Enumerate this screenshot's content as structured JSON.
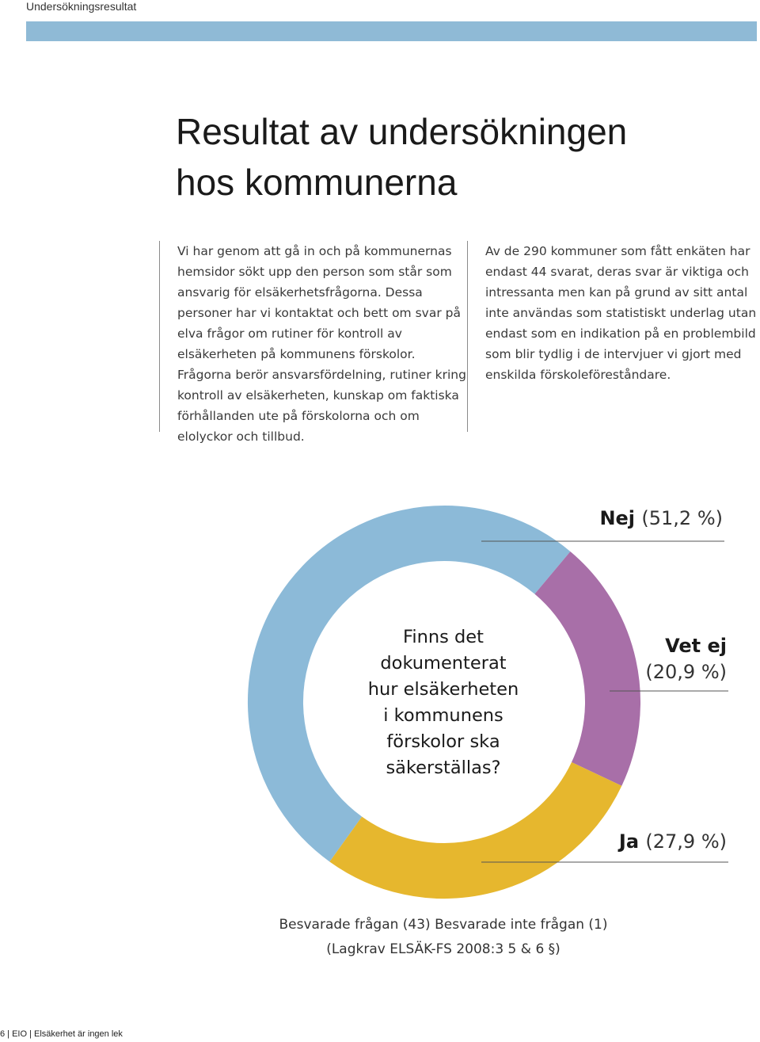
{
  "running_header": "Undersökningsresultat",
  "title": {
    "line1": "Resultat av undersökningen",
    "line2": "hos kommunerna"
  },
  "columns": {
    "left": "Vi har genom att gå in och på kommunernas hemsidor sökt upp den person som står som ansvarig för elsäkerhetsfrågorna. Dessa personer har vi kontaktat och bett om svar på elva frågor om rutiner för kontroll av elsäkerheten på kommunens förskolor. Frågorna berör ansvarsfördelning, rutiner kring kontroll av elsäkerheten, kunskap om faktiska förhållanden ute på förskolorna och om elolyckor och tillbud.",
    "right": "Av de 290 kommuner som fått enkäten har endast 44 svarat, deras svar är viktiga och intressanta men kan på grund av sitt antal inte användas som statistiskt underlag utan endast som en indikation på en problembild som blir tydlig i de intervjuer vi gjort med enskilda förskoleföreståndare."
  },
  "chart_data": {
    "type": "pie",
    "donut": true,
    "center_text": [
      "Finns det",
      "dokumenterat",
      "hur elsäkerheten",
      "i kommunens",
      "förskolor ska",
      "säkerställas?"
    ],
    "slices": [
      {
        "label": "Nej",
        "value": 51.2,
        "value_text": "(51,2 %)",
        "color": "#8cbad8"
      },
      {
        "label": "Vet ej",
        "value": 20.9,
        "value_text": "(20,9 %)",
        "color": "#a86fa8"
      },
      {
        "label": "Ja",
        "value": 27.9,
        "value_text": "(27,9 %)",
        "color": "#e6b72e"
      }
    ]
  },
  "caption": {
    "line1": "Besvarade frågan (43) Besvarade inte frågan (1)",
    "line2": "(Lagkrav ELSÄK-FS 2008:3 5 & 6 §)"
  },
  "footer": "6 | EIO | Elsäkerhet är ingen lek"
}
